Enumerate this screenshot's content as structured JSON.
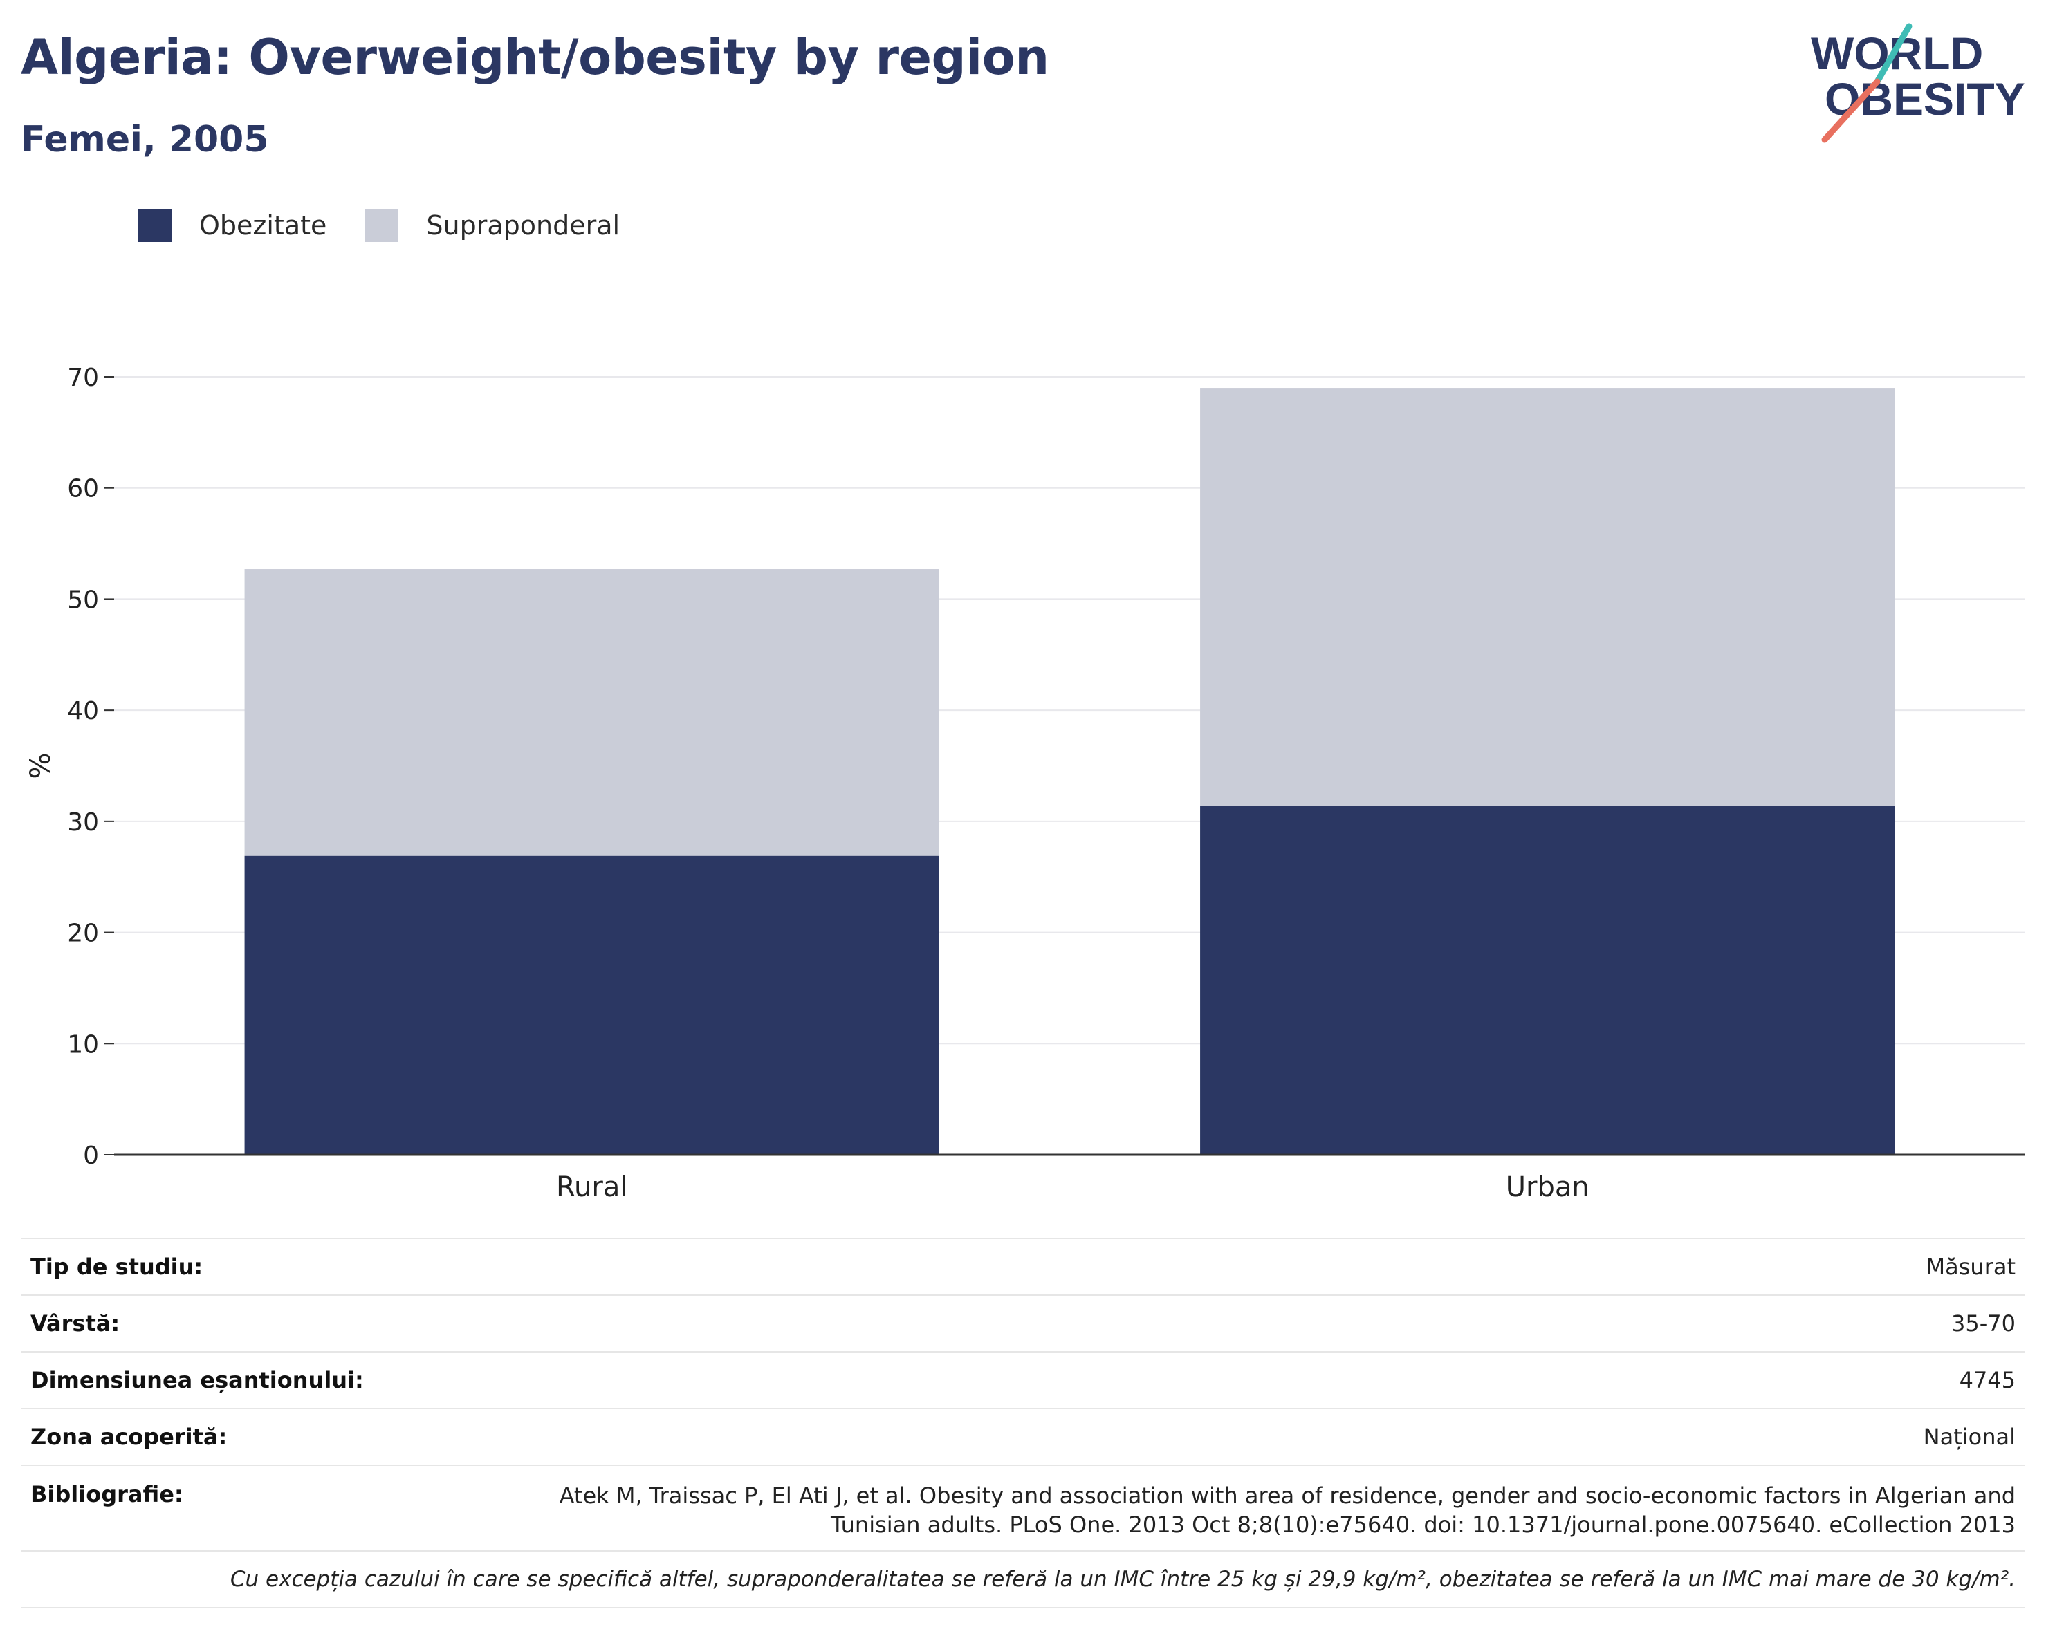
{
  "header": {
    "title": "Algeria: Overweight/obesity by region",
    "subtitle": "Femei, 2005"
  },
  "logo": {
    "line1": "WORLD",
    "line2": "OBESITY",
    "colors": {
      "text": "#2b3763",
      "slash_top": "#3fbcb5",
      "slash_bottom": "#e8705f"
    }
  },
  "legend": [
    {
      "label": "Obezitate",
      "color": "#2b3763"
    },
    {
      "label": "Supraponderal",
      "color": "#cacdd8"
    }
  ],
  "chart_data": {
    "type": "bar",
    "stacked": true,
    "categories": [
      "Rural",
      "Urban"
    ],
    "series": [
      {
        "name": "Obezitate",
        "color": "#2b3763",
        "values": [
          26.9,
          31.4
        ]
      },
      {
        "name": "Supraponderal",
        "color": "#cacdd8",
        "values": [
          25.8,
          37.6
        ]
      }
    ],
    "ylabel": "%",
    "xlabel": "",
    "ylim": [
      0,
      70
    ],
    "yticks": [
      0,
      10,
      20,
      30,
      40,
      50,
      60,
      70
    ],
    "grid": true,
    "legend_position": "top-left"
  },
  "info": {
    "study_type": {
      "label": "Tip de studiu:",
      "value": "Măsurat"
    },
    "age": {
      "label": "Vârstă:",
      "value": "35-70"
    },
    "sample_size": {
      "label": "Dimensiunea eșantionului:",
      "value": "4745"
    },
    "area": {
      "label": "Zona acoperită:",
      "value": "Național"
    },
    "bibliography": {
      "label": "Bibliografie:",
      "line1": "Atek M, Traissac P, El Ati J, et al. Obesity and association with area of residence, gender and socio-economic factors in Algerian and",
      "line2": "Tunisian adults. PLoS One. 2013 Oct 8;8(10):e75640. doi: 10.1371/journal.pone.0075640. eCollection 2013"
    },
    "note": "Cu excepția cazului în care se specifică altfel, supraponderalitatea se referă la un IMC între 25 kg și 29,9 kg/m², obezitatea se referă la un IMC mai mare de 30 kg/m²."
  }
}
